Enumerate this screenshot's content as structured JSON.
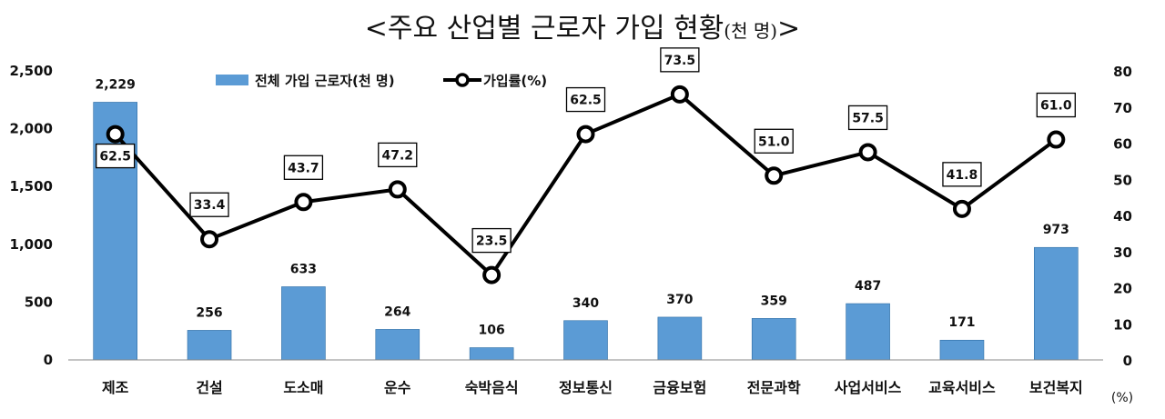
{
  "chart_data": {
    "type": "bar",
    "title": "<주요 산업별 근로자 가입 현황",
    "title_unit": "(천 명)",
    "title_close": ">",
    "categories": [
      "제조",
      "건설",
      "도소매",
      "운수",
      "숙박음식",
      "정보통신",
      "금융보험",
      "전문과학",
      "사업서비스",
      "교육서비스",
      "보건복지"
    ],
    "series": [
      {
        "name": "전체 가입 근로자(천 명)",
        "type": "bar",
        "axis": "left",
        "color": "#5b9bd5",
        "values": [
          2229,
          256,
          633,
          264,
          106,
          340,
          370,
          359,
          487,
          171,
          973
        ],
        "labels": [
          "2,229",
          "256",
          "633",
          "264",
          "106",
          "340",
          "370",
          "359",
          "487",
          "171",
          "973"
        ]
      },
      {
        "name": "가입률(%)",
        "type": "line",
        "axis": "right",
        "color": "#000000",
        "values": [
          62.5,
          33.4,
          43.7,
          47.2,
          23.5,
          62.5,
          73.5,
          51.0,
          57.5,
          41.8,
          61.0
        ],
        "labels": [
          "62.5",
          "33.4",
          "43.7",
          "47.2",
          "23.5",
          "62.5",
          "73.5",
          "51.0",
          "57.5",
          "41.8",
          "61.0"
        ]
      }
    ],
    "y_left": {
      "ylim": [
        0,
        2500
      ],
      "ticks": [
        0,
        500,
        1000,
        1500,
        2000,
        2500
      ],
      "tick_labels": [
        "0",
        "500",
        "1,000",
        "1,500",
        "2,000",
        "2,500"
      ]
    },
    "y_right": {
      "ylim": [
        0,
        80
      ],
      "ticks": [
        0,
        10,
        20,
        30,
        40,
        50,
        60,
        70,
        80
      ],
      "tick_labels": [
        "0",
        "10",
        "20",
        "30",
        "40",
        "50",
        "60",
        "70",
        "80"
      ],
      "unit_label": "(%)"
    },
    "legend_position": "top",
    "grid": false
  }
}
